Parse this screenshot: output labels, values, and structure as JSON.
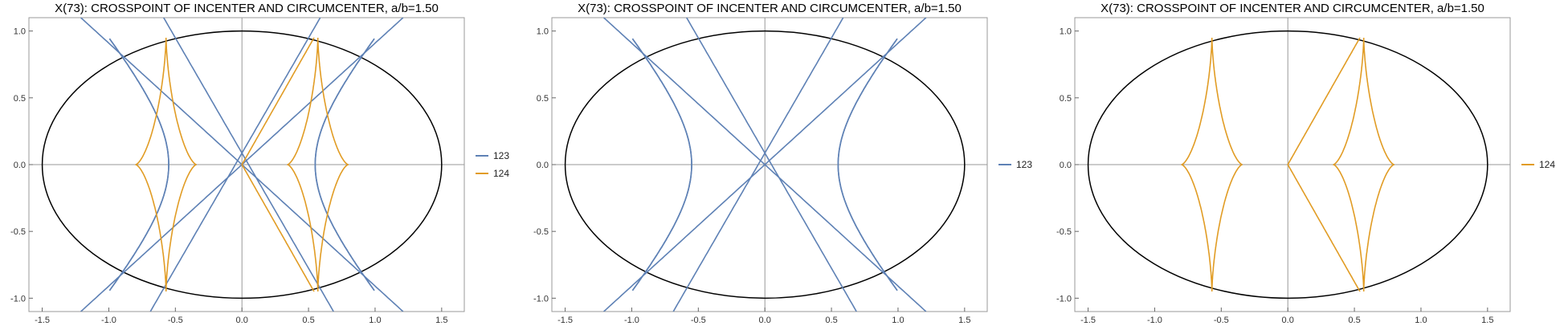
{
  "chart_data": [
    {
      "type": "line",
      "title": "X(73): CROSSPOINT OF INCENTER AND CIRCUMCENTER, a/b=1.50",
      "xlabel": "",
      "ylabel": "",
      "xlim": [
        -1.6,
        1.67
      ],
      "ylim": [
        -1.1,
        1.1
      ],
      "xticks": [
        "-1.5",
        "-1.0",
        "-0.5",
        "0.0",
        "0.5",
        "1.0",
        "1.5"
      ],
      "yticks": [
        "-1.0",
        "-0.5",
        "0.0",
        "0.5",
        "1.0"
      ],
      "ellipse": {
        "a": 1.5,
        "b": 1.0,
        "color": "#000000"
      },
      "series": [
        {
          "name": "123",
          "color": "#5E81B5",
          "kind": "hyperbola",
          "c": 0.5,
          "s": 1.7
        },
        {
          "name": "124",
          "color": "#E19C24",
          "kind": "astroid",
          "p": 0.57,
          "q": 0.95
        }
      ],
      "legend": "right"
    },
    {
      "type": "line",
      "title": "X(73): CROSSPOINT OF INCENTER AND CIRCUMCENTER, a/b=1.50",
      "xlabel": "",
      "ylabel": "",
      "xlim": [
        -1.6,
        1.67
      ],
      "ylim": [
        -1.1,
        1.1
      ],
      "xticks": [
        "-1.5",
        "-1.0",
        "-0.5",
        "0.0",
        "0.5",
        "1.0",
        "1.5"
      ],
      "yticks": [
        "-1.0",
        "-0.5",
        "0.0",
        "0.5",
        "1.0"
      ],
      "ellipse": {
        "a": 1.5,
        "b": 1.0,
        "color": "#000000"
      },
      "series": [
        {
          "name": "123",
          "color": "#5E81B5",
          "kind": "hyperbola",
          "c": 0.5,
          "s": 1.7
        }
      ],
      "legend": "right"
    },
    {
      "type": "line",
      "title": "X(73): CROSSPOINT OF INCENTER AND CIRCUMCENTER, a/b=1.50",
      "xlabel": "",
      "ylabel": "",
      "xlim": [
        -1.6,
        1.67
      ],
      "ylim": [
        -1.1,
        1.1
      ],
      "xticks": [
        "-1.5",
        "-1.0",
        "-0.5",
        "0.0",
        "0.5",
        "1.0",
        "1.5"
      ],
      "yticks": [
        "-1.0",
        "-0.5",
        "0.0",
        "0.5",
        "1.0"
      ],
      "ellipse": {
        "a": 1.5,
        "b": 1.0,
        "color": "#000000"
      },
      "series": [
        {
          "name": "124",
          "color": "#E19C24",
          "kind": "astroid",
          "p": 0.57,
          "q": 0.95
        }
      ],
      "legend": "right"
    }
  ]
}
